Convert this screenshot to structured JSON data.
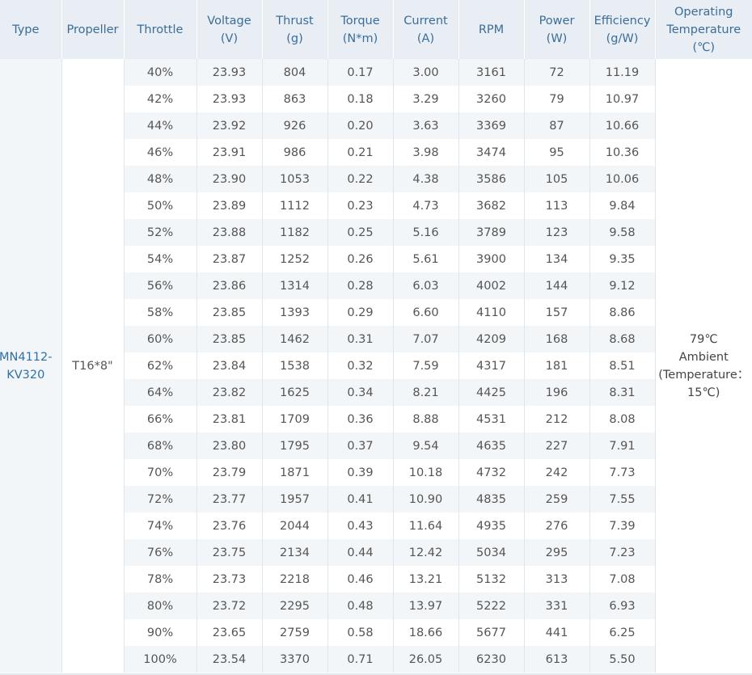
{
  "table": {
    "headers": [
      {
        "line1": "Type",
        "line2": ""
      },
      {
        "line1": "Propeller",
        "line2": ""
      },
      {
        "line1": "Throttle",
        "line2": ""
      },
      {
        "line1": "Voltage",
        "line2": "(V)"
      },
      {
        "line1": "Thrust",
        "line2": "(g)"
      },
      {
        "line1": "Torque",
        "line2": "(N*m)"
      },
      {
        "line1": "Current",
        "line2": "(A)"
      },
      {
        "line1": "RPM",
        "line2": ""
      },
      {
        "line1": "Power",
        "line2": "(W)"
      },
      {
        "line1": "Efficiency",
        "line2": "(g/W)"
      },
      {
        "line1": "Operating",
        "line2": "Temperature",
        "line3": "(℃)"
      }
    ],
    "type_line1": "MN4112-",
    "type_line2": "KV320",
    "propeller": "T16*8\"",
    "temp_line1": "79℃",
    "temp_line2": "Ambient",
    "temp_line3": "(Temperature：",
    "temp_line4": "15℃)",
    "rows": [
      [
        "40%",
        "23.93",
        "804",
        "0.17",
        "3.00",
        "3161",
        "72",
        "11.19"
      ],
      [
        "42%",
        "23.93",
        "863",
        "0.18",
        "3.29",
        "3260",
        "79",
        "10.97"
      ],
      [
        "44%",
        "23.92",
        "926",
        "0.20",
        "3.63",
        "3369",
        "87",
        "10.66"
      ],
      [
        "46%",
        "23.91",
        "986",
        "0.21",
        "3.98",
        "3474",
        "95",
        "10.36"
      ],
      [
        "48%",
        "23.90",
        "1053",
        "0.22",
        "4.38",
        "3586",
        "105",
        "10.06"
      ],
      [
        "50%",
        "23.89",
        "1112",
        "0.23",
        "4.73",
        "3682",
        "113",
        "9.84"
      ],
      [
        "52%",
        "23.88",
        "1182",
        "0.25",
        "5.16",
        "3789",
        "123",
        "9.58"
      ],
      [
        "54%",
        "23.87",
        "1252",
        "0.26",
        "5.61",
        "3900",
        "134",
        "9.35"
      ],
      [
        "56%",
        "23.86",
        "1314",
        "0.28",
        "6.03",
        "4002",
        "144",
        "9.12"
      ],
      [
        "58%",
        "23.85",
        "1393",
        "0.29",
        "6.60",
        "4110",
        "157",
        "8.86"
      ],
      [
        "60%",
        "23.85",
        "1462",
        "0.31",
        "7.07",
        "4209",
        "168",
        "8.68"
      ],
      [
        "62%",
        "23.84",
        "1538",
        "0.32",
        "7.59",
        "4317",
        "181",
        "8.51"
      ],
      [
        "64%",
        "23.82",
        "1625",
        "0.34",
        "8.21",
        "4425",
        "196",
        "8.31"
      ],
      [
        "66%",
        "23.81",
        "1709",
        "0.36",
        "8.88",
        "4531",
        "212",
        "8.08"
      ],
      [
        "68%",
        "23.80",
        "1795",
        "0.37",
        "9.54",
        "4635",
        "227",
        "7.91"
      ],
      [
        "70%",
        "23.79",
        "1871",
        "0.39",
        "10.18",
        "4732",
        "242",
        "7.73"
      ],
      [
        "72%",
        "23.77",
        "1957",
        "0.41",
        "10.90",
        "4835",
        "259",
        "7.55"
      ],
      [
        "74%",
        "23.76",
        "2044",
        "0.43",
        "11.64",
        "4935",
        "276",
        "7.39"
      ],
      [
        "76%",
        "23.75",
        "2134",
        "0.44",
        "12.42",
        "5034",
        "295",
        "7.23"
      ],
      [
        "78%",
        "23.73",
        "2218",
        "0.46",
        "13.21",
        "5132",
        "313",
        "7.08"
      ],
      [
        "80%",
        "23.72",
        "2295",
        "0.48",
        "13.97",
        "5222",
        "331",
        "6.93"
      ],
      [
        "90%",
        "23.65",
        "2759",
        "0.58",
        "18.66",
        "5677",
        "441",
        "6.25"
      ],
      [
        "100%",
        "23.54",
        "3370",
        "0.71",
        "26.05",
        "6230",
        "613",
        "5.50"
      ]
    ]
  }
}
